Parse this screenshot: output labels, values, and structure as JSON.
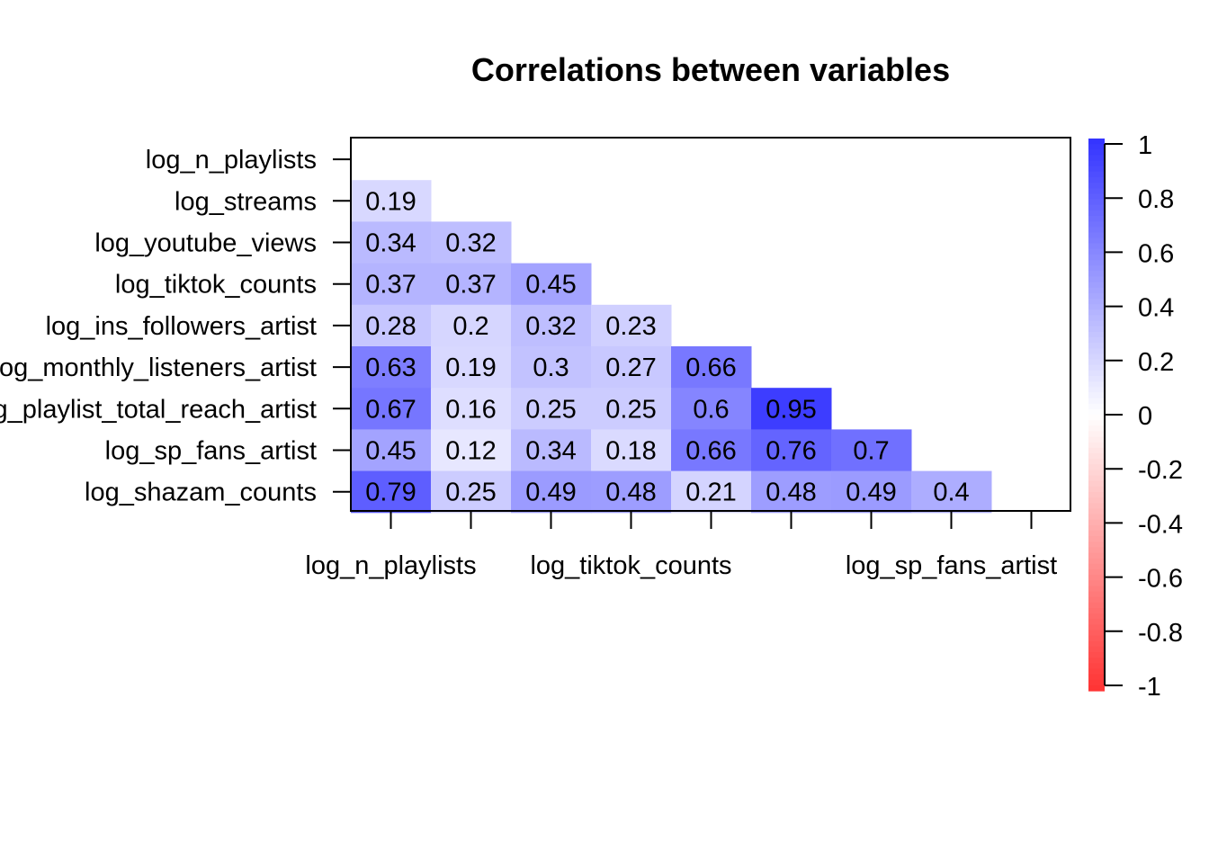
{
  "chart_data": {
    "type": "heatmap",
    "title": "Correlations between variables",
    "row_labels": [
      "log_n_playlists",
      "log_streams",
      "log_youtube_views",
      "log_tiktok_counts",
      "log_ins_followers_artist",
      "log_monthly_listeners_artist",
      "log_playlist_total_reach_artist",
      "log_sp_fans_artist",
      "log_shazam_counts"
    ],
    "x_tick_labels": [
      {
        "col": 0,
        "label": "log_n_playlists"
      },
      {
        "col": 3,
        "label": "log_tiktok_counts"
      },
      {
        "col": 7,
        "label": "log_sp_fans_artist"
      }
    ],
    "n_columns": 9,
    "cells": [
      {
        "row": 1,
        "col": 0,
        "value": 0.19
      },
      {
        "row": 2,
        "col": 0,
        "value": 0.34
      },
      {
        "row": 2,
        "col": 1,
        "value": 0.32
      },
      {
        "row": 3,
        "col": 0,
        "value": 0.37
      },
      {
        "row": 3,
        "col": 1,
        "value": 0.37
      },
      {
        "row": 3,
        "col": 2,
        "value": 0.45
      },
      {
        "row": 4,
        "col": 0,
        "value": 0.28
      },
      {
        "row": 4,
        "col": 1,
        "value": 0.2
      },
      {
        "row": 4,
        "col": 2,
        "value": 0.32
      },
      {
        "row": 4,
        "col": 3,
        "value": 0.23
      },
      {
        "row": 5,
        "col": 0,
        "value": 0.63
      },
      {
        "row": 5,
        "col": 1,
        "value": 0.19
      },
      {
        "row": 5,
        "col": 2,
        "value": 0.3
      },
      {
        "row": 5,
        "col": 3,
        "value": 0.27
      },
      {
        "row": 5,
        "col": 4,
        "value": 0.66
      },
      {
        "row": 6,
        "col": 0,
        "value": 0.67
      },
      {
        "row": 6,
        "col": 1,
        "value": 0.16
      },
      {
        "row": 6,
        "col": 2,
        "value": 0.25
      },
      {
        "row": 6,
        "col": 3,
        "value": 0.25
      },
      {
        "row": 6,
        "col": 4,
        "value": 0.6
      },
      {
        "row": 6,
        "col": 5,
        "value": 0.95
      },
      {
        "row": 7,
        "col": 0,
        "value": 0.45
      },
      {
        "row": 7,
        "col": 1,
        "value": 0.12
      },
      {
        "row": 7,
        "col": 2,
        "value": 0.34
      },
      {
        "row": 7,
        "col": 3,
        "value": 0.18
      },
      {
        "row": 7,
        "col": 4,
        "value": 0.66
      },
      {
        "row": 7,
        "col": 5,
        "value": 0.76
      },
      {
        "row": 7,
        "col": 6,
        "value": 0.7
      },
      {
        "row": 8,
        "col": 0,
        "value": 0.79
      },
      {
        "row": 8,
        "col": 1,
        "value": 0.25
      },
      {
        "row": 8,
        "col": 2,
        "value": 0.49
      },
      {
        "row": 8,
        "col": 3,
        "value": 0.48
      },
      {
        "row": 8,
        "col": 4,
        "value": 0.21
      },
      {
        "row": 8,
        "col": 5,
        "value": 0.48
      },
      {
        "row": 8,
        "col": 6,
        "value": 0.49
      },
      {
        "row": 8,
        "col": 7,
        "value": 0.4
      }
    ],
    "color_scale": {
      "range": [
        -1,
        1
      ],
      "low_color": "#ff3333",
      "mid_color": "#ffffff",
      "high_color": "#3333ff",
      "ticks": [
        1,
        0.8,
        0.6,
        0.4,
        0.2,
        0,
        -0.2,
        -0.4,
        -0.6,
        -0.8,
        -1
      ],
      "tick_labels": [
        "1",
        "0.8",
        "0.6",
        "0.4",
        "0.2",
        "0",
        "-0.2",
        "-0.4",
        "-0.6",
        "-0.8",
        "-1"
      ]
    },
    "legend": "right",
    "grid": false
  }
}
